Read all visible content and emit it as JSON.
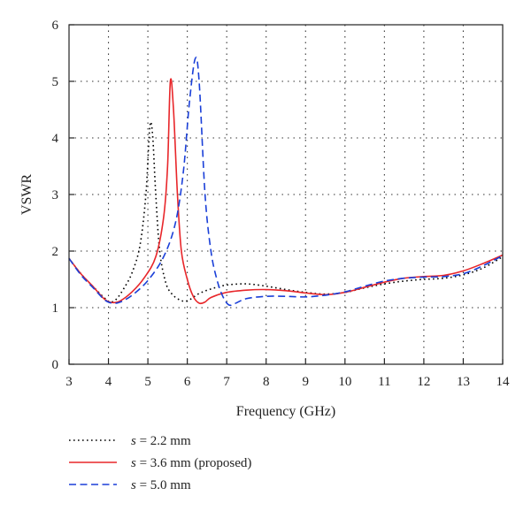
{
  "chart_data": {
    "type": "line",
    "title": "",
    "xlabel": "Frequency (GHz)",
    "ylabel": "VSWR",
    "xlim": [
      3,
      14
    ],
    "ylim": [
      0,
      6
    ],
    "xticks": [
      "3",
      "4",
      "5",
      "6",
      "7",
      "8",
      "9",
      "10",
      "11",
      "12",
      "13",
      "14"
    ],
    "yticks": [
      "0",
      "1",
      "2",
      "3",
      "4",
      "5",
      "6"
    ],
    "grid": true,
    "legend_position": "bottom-left, below plot",
    "series": [
      {
        "name": "s = 2.2 mm",
        "name_var": "s",
        "name_rest": " = 2.2 mm",
        "style": "dotted",
        "color": "#000000",
        "x": [
          3.0,
          3.3,
          3.6,
          3.9,
          4.05,
          4.2,
          4.4,
          4.6,
          4.8,
          4.95,
          5.05,
          5.12,
          5.2,
          5.3,
          5.45,
          5.6,
          5.8,
          6.0,
          6.3,
          6.6,
          7.0,
          7.5,
          8.0,
          8.5,
          9.0,
          9.5,
          10.0,
          10.5,
          11.0,
          11.5,
          12.0,
          12.5,
          13.0,
          13.5,
          14.0
        ],
        "y": [
          1.87,
          1.6,
          1.38,
          1.17,
          1.1,
          1.15,
          1.35,
          1.62,
          2.1,
          3.0,
          4.2,
          4.05,
          3.0,
          2.0,
          1.45,
          1.25,
          1.14,
          1.12,
          1.25,
          1.33,
          1.4,
          1.42,
          1.38,
          1.32,
          1.27,
          1.24,
          1.27,
          1.35,
          1.42,
          1.47,
          1.5,
          1.52,
          1.58,
          1.7,
          1.9
        ]
      },
      {
        "name": "s = 3.6 mm (proposed)",
        "name_var": "s",
        "name_rest": " = 3.6 mm (proposed)",
        "style": "solid",
        "color": "#e8262a",
        "x": [
          3.0,
          3.3,
          3.6,
          3.9,
          4.1,
          4.3,
          4.6,
          4.9,
          5.2,
          5.4,
          5.5,
          5.57,
          5.65,
          5.75,
          5.85,
          6.0,
          6.15,
          6.3,
          6.45,
          6.6,
          7.0,
          7.5,
          8.0,
          8.5,
          9.0,
          9.5,
          10.0,
          10.5,
          11.0,
          11.5,
          12.0,
          12.5,
          13.0,
          13.5,
          14.0
        ],
        "y": [
          1.87,
          1.6,
          1.38,
          1.15,
          1.09,
          1.12,
          1.28,
          1.52,
          1.9,
          2.6,
          3.5,
          5.0,
          4.5,
          3.0,
          2.0,
          1.5,
          1.2,
          1.08,
          1.1,
          1.18,
          1.27,
          1.31,
          1.32,
          1.3,
          1.26,
          1.23,
          1.27,
          1.36,
          1.45,
          1.52,
          1.55,
          1.57,
          1.65,
          1.78,
          1.93
        ]
      },
      {
        "name": "s = 5.0 mm",
        "name_var": "s",
        "name_rest": " = 5.0 mm",
        "style": "dashed",
        "color": "#1a3fd8",
        "x": [
          3.0,
          3.3,
          3.6,
          3.9,
          4.1,
          4.3,
          4.6,
          5.0,
          5.4,
          5.7,
          5.9,
          6.05,
          6.2,
          6.3,
          6.45,
          6.6,
          6.75,
          6.9,
          7.05,
          7.2,
          7.5,
          8.0,
          8.5,
          9.0,
          9.5,
          10.0,
          10.5,
          11.0,
          11.5,
          12.0,
          12.5,
          13.0,
          13.5,
          14.0
        ],
        "y": [
          1.87,
          1.58,
          1.36,
          1.14,
          1.08,
          1.1,
          1.22,
          1.48,
          1.9,
          2.5,
          3.4,
          4.6,
          5.4,
          5.0,
          3.0,
          2.0,
          1.5,
          1.2,
          1.05,
          1.07,
          1.16,
          1.2,
          1.2,
          1.19,
          1.22,
          1.28,
          1.38,
          1.47,
          1.52,
          1.54,
          1.55,
          1.6,
          1.74,
          1.92
        ]
      }
    ]
  }
}
